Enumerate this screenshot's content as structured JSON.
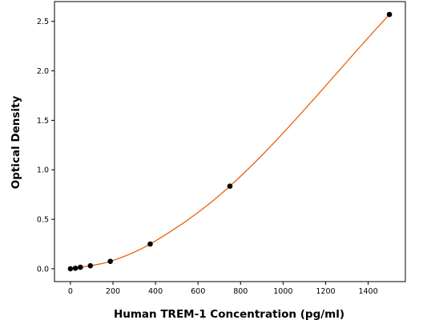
{
  "chart_data": {
    "type": "scatter",
    "title": "",
    "xlabel": "Human TREM-1 Concentration (pg/ml)",
    "ylabel": "Optical Density",
    "xlim": [
      -75,
      1575
    ],
    "ylim": [
      -0.13,
      2.7
    ],
    "xticks": [
      0,
      200,
      400,
      600,
      800,
      1000,
      1200,
      1400
    ],
    "yticks": [
      0.0,
      0.5,
      1.0,
      1.5,
      2.0,
      2.5
    ],
    "ytick_labels": [
      "0.0",
      "0.5",
      "1.0",
      "1.5",
      "2.0",
      "2.5"
    ],
    "grid": false,
    "legend": "none",
    "series": [
      {
        "points": [
          {
            "x": 0,
            "y": 0.0
          },
          {
            "x": 23.4,
            "y": 0.005
          },
          {
            "x": 46.9,
            "y": 0.015
          },
          {
            "x": 93.8,
            "y": 0.03
          },
          {
            "x": 187.5,
            "y": 0.075
          },
          {
            "x": 375,
            "y": 0.25
          },
          {
            "x": 750,
            "y": 0.835
          },
          {
            "x": 1500,
            "y": 2.57
          }
        ],
        "marker_color": "#000000"
      }
    ],
    "fit_curve": {
      "color": "#e8620c",
      "x_range": [
        0,
        1500
      ]
    }
  }
}
